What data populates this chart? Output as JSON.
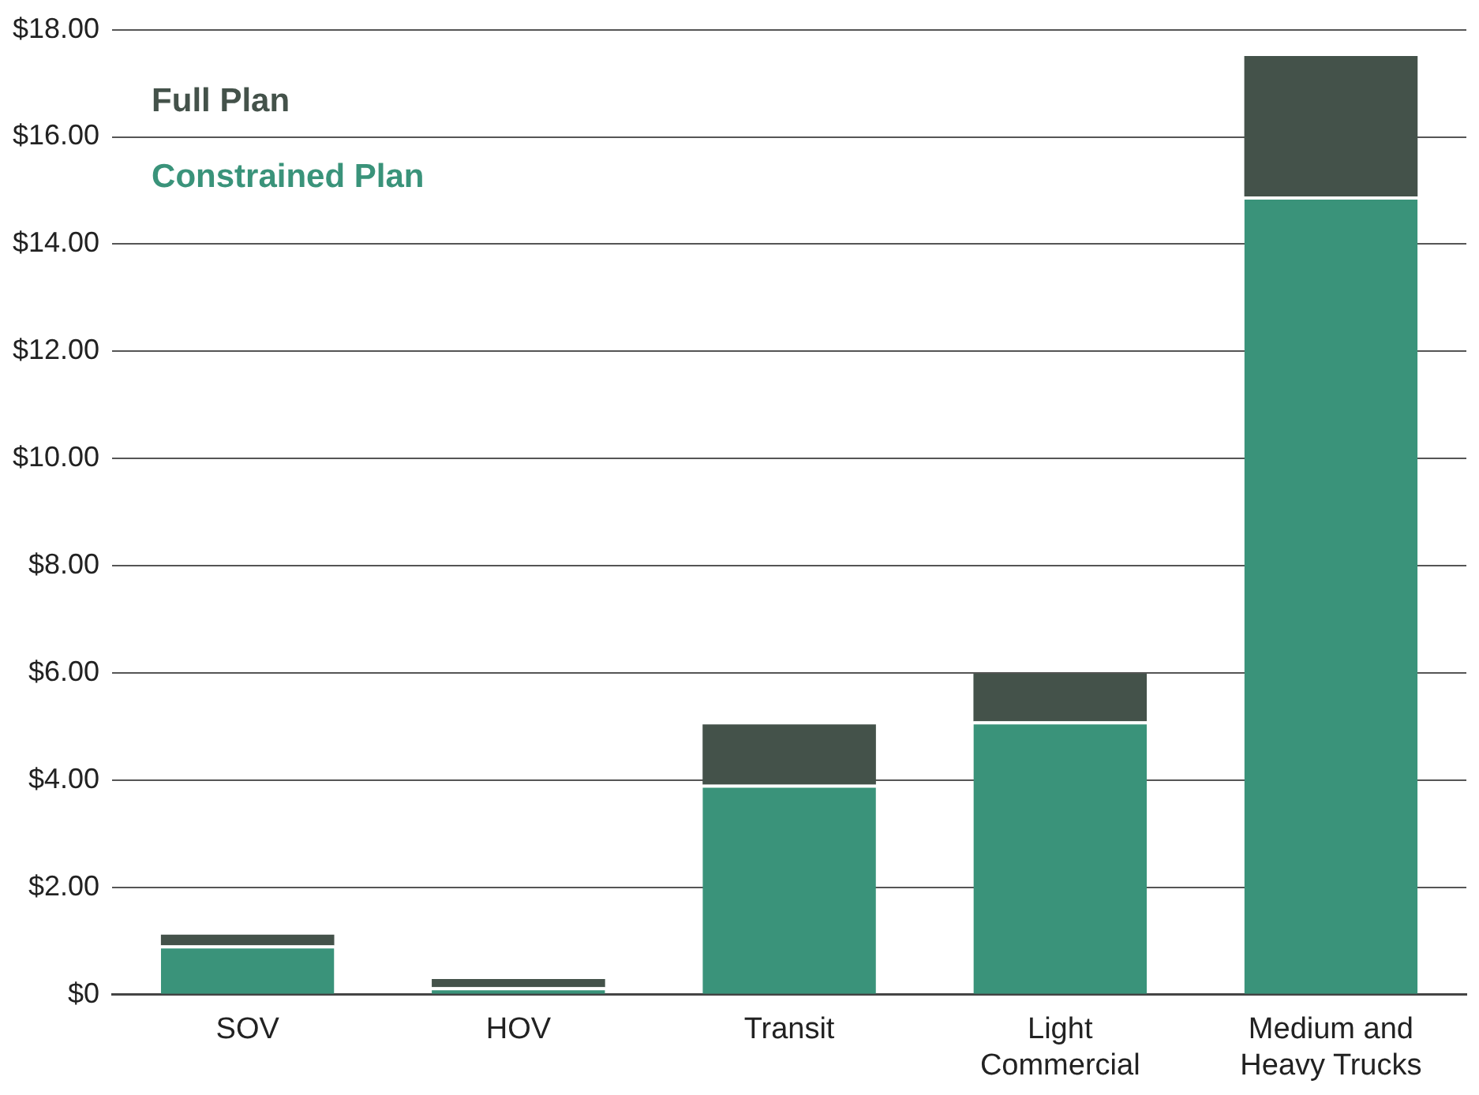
{
  "chart_data": {
    "type": "bar",
    "stacked": true,
    "categories": [
      "SOV",
      "HOV",
      "Transit",
      "Light Commercial",
      "Medium and Heavy Trucks"
    ],
    "series": [
      {
        "name": "Constrained Plan",
        "color": "#3a937a",
        "values": [
          0.92,
          0.14,
          3.92,
          5.1,
          14.89
        ]
      },
      {
        "name": "Full Plan",
        "color": "#44524a",
        "values": [
          0.2,
          0.15,
          1.12,
          0.89,
          2.62
        ]
      }
    ],
    "ylim": [
      0,
      18
    ],
    "yticks": [
      {
        "value": 0,
        "label": "$0"
      },
      {
        "value": 2,
        "label": "$2.00"
      },
      {
        "value": 4,
        "label": "$4.00"
      },
      {
        "value": 6,
        "label": "$6.00"
      },
      {
        "value": 8,
        "label": "$8.00"
      },
      {
        "value": 10,
        "label": "$10.00"
      },
      {
        "value": 12,
        "label": "$12.00"
      },
      {
        "value": 14,
        "label": "$14.00"
      },
      {
        "value": 16,
        "label": "$16.00"
      },
      {
        "value": 18,
        "label": "$18.00"
      }
    ],
    "grid": "y",
    "legend": "top left"
  }
}
